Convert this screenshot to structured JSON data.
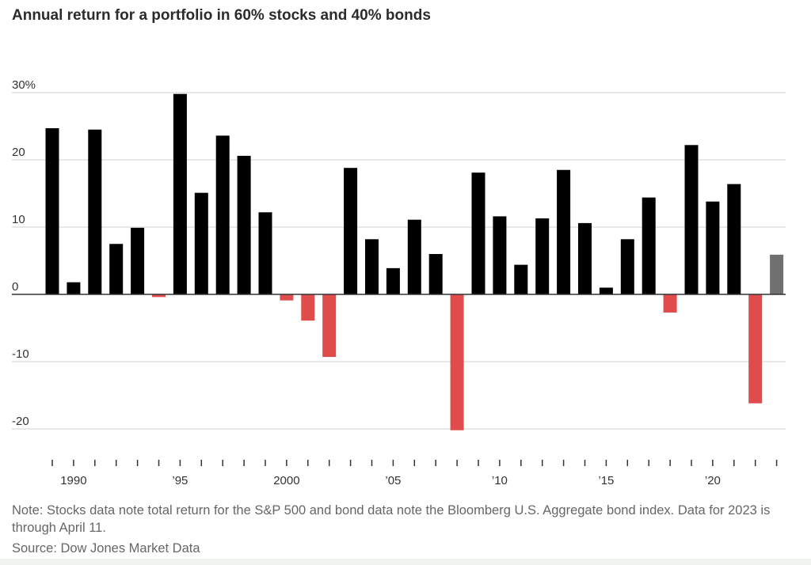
{
  "title": "Annual return for a portfolio in 60% stocks and 40% bonds",
  "note": "Note: Stocks data note total return for the S&P 500 and bond data note the Bloomberg U.S. Aggregate bond index. Data for 2023 is through April 11.",
  "source": "Source: Dow Jones Market Data",
  "colors": {
    "positive": "#000000",
    "negative": "#e04b4b",
    "partial_year": "#707070",
    "gridline": "#d9d9d9",
    "zero_line": "#333333",
    "text": "#333333"
  },
  "chart_data": {
    "type": "bar",
    "title": "Annual return for a portfolio in 60% stocks and 40% bonds",
    "xlabel": "",
    "ylabel": "",
    "ylim": [
      -20,
      30
    ],
    "y_ticks": [
      30,
      20,
      10,
      0,
      -10,
      -20
    ],
    "y_tick_labels": [
      "30%",
      "20",
      "10",
      "0",
      "-10",
      "-20"
    ],
    "x_tick_labels": [
      {
        "year": 1990,
        "label": "1990"
      },
      {
        "year": 1995,
        "label": "’95"
      },
      {
        "year": 2000,
        "label": "2000"
      },
      {
        "year": 2005,
        "label": "’05"
      },
      {
        "year": 2010,
        "label": "’10"
      },
      {
        "year": 2015,
        "label": "’15"
      },
      {
        "year": 2020,
        "label": "’20"
      }
    ],
    "grid": true,
    "categories": [
      1989,
      1990,
      1991,
      1992,
      1993,
      1994,
      1995,
      1996,
      1997,
      1998,
      1999,
      2000,
      2001,
      2002,
      2003,
      2004,
      2005,
      2006,
      2007,
      2008,
      2009,
      2010,
      2011,
      2012,
      2013,
      2014,
      2015,
      2016,
      2017,
      2018,
      2019,
      2020,
      2021,
      2022,
      2023
    ],
    "values": [
      24.7,
      1.8,
      24.5,
      7.5,
      9.9,
      -0.4,
      29.8,
      15.1,
      23.6,
      20.6,
      12.2,
      -0.9,
      -3.9,
      -9.3,
      18.8,
      8.2,
      3.9,
      11.1,
      6.0,
      -20.2,
      18.1,
      11.6,
      4.4,
      11.3,
      18.5,
      10.6,
      1.0,
      8.2,
      14.4,
      -2.7,
      22.2,
      13.8,
      16.4,
      -16.2,
      5.9
    ],
    "partial_year": 2023
  }
}
